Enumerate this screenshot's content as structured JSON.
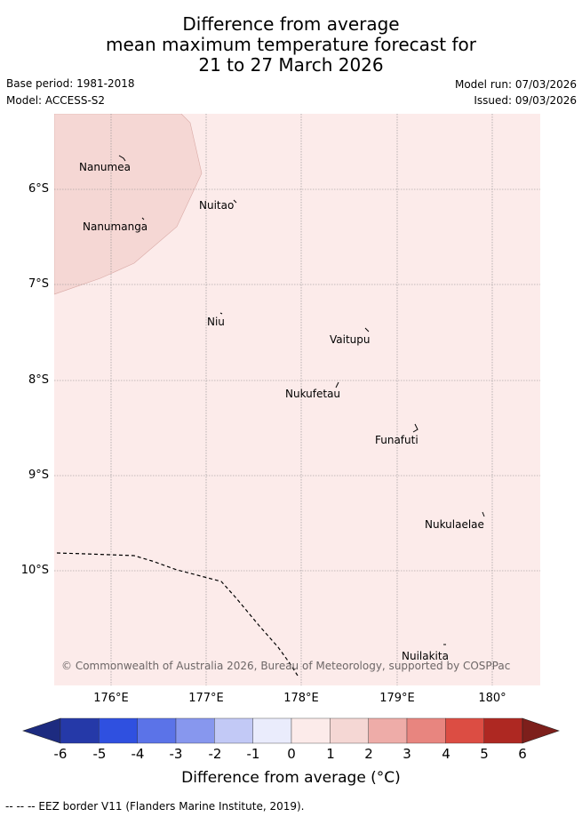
{
  "title": {
    "line1": "Difference from average",
    "line2": "mean maximum temperature forecast for",
    "line3": "21 to 27 March 2026"
  },
  "meta": {
    "base_period": "Base period: 1981-2018",
    "model": "Model: ACCESS-S2",
    "model_run": "Model run: 07/03/2026",
    "issued": "Issued: 09/03/2026"
  },
  "map": {
    "lat_labels": [
      "6°S",
      "7°S",
      "8°S",
      "9°S",
      "10°S"
    ],
    "lon_labels": [
      "176°E",
      "177°E",
      "178°E",
      "179°E",
      "180°"
    ],
    "places": [
      "Nanumea",
      "Nuitao",
      "Nanumanga",
      "Niu",
      "Vaitupu",
      "Nukufetau",
      "Funafuti",
      "Nukulaelae",
      "Nuilakita"
    ],
    "copyright": "© Commonwealth of Australia 2026, Bureau of Meteorology, supported by COSPPac",
    "background_color": "#fcebea",
    "warm_region_color": "#f5d7d4"
  },
  "colorbar": {
    "ticks": [
      "-6",
      "-5",
      "-4",
      "-3",
      "-2",
      "-1",
      "0",
      "1",
      "2",
      "3",
      "4",
      "5",
      "6"
    ],
    "colors": [
      "#2539a8",
      "#2f50e0",
      "#5b73e8",
      "#8797ee",
      "#c2c9f6",
      "#eaecfc",
      "#fcebea",
      "#f5d7d4",
      "#eeaca8",
      "#e8857f",
      "#dc4d43",
      "#ae2822"
    ],
    "low_extend_color": "#1d2b80",
    "high_extend_color": "#7d1f1b",
    "label": "Difference from average (°C)"
  },
  "legend": {
    "eez": "--  --  -- EEZ border V11 (Flanders Marine Institute, 2019)."
  }
}
